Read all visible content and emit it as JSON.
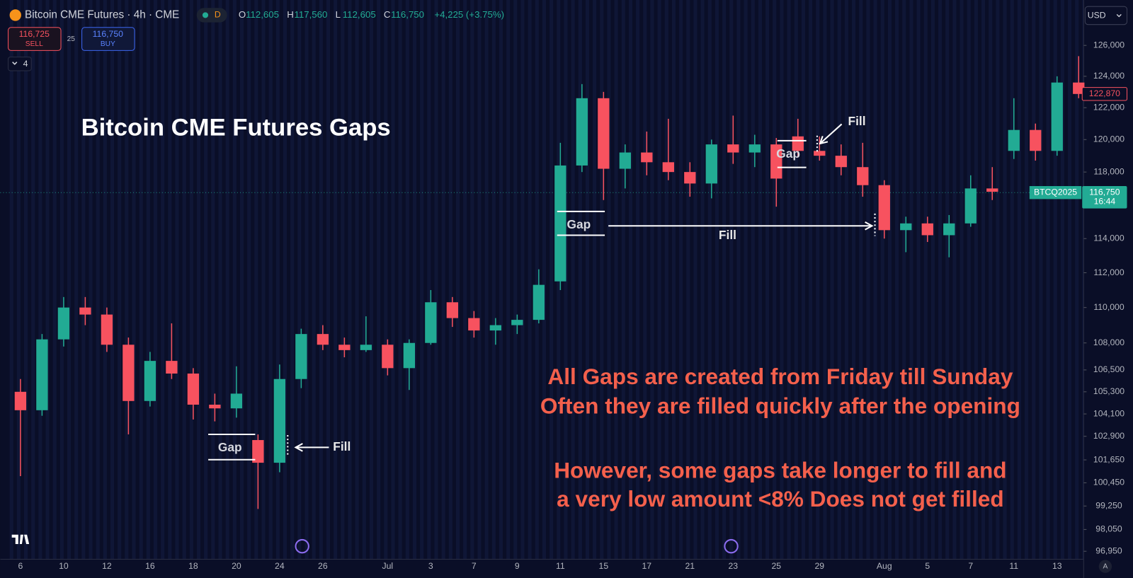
{
  "header": {
    "symbol": "Bitcoin CME Futures · 4h · CME",
    "badge": "D",
    "ohlc": [
      {
        "key": "O",
        "value": "112,605"
      },
      {
        "key": "H",
        "value": "117,560"
      },
      {
        "key": "L",
        "value": "112,605"
      },
      {
        "key": "C",
        "value": "116,750"
      }
    ],
    "change": "+4,225 (+3.75%)",
    "sell_price": "116,725",
    "sell": "SELL",
    "spread": "25",
    "buy_price": "116,750",
    "buy": "BUY",
    "layers": "4",
    "currency": "USD",
    "scale_mode": "A"
  },
  "chart_data": {
    "type": "candlestick",
    "title": "Bitcoin CME Futures Gaps",
    "categories": [
      "6",
      null,
      "10",
      null,
      "12",
      null,
      "16",
      null,
      "18",
      null,
      "20",
      null,
      "24",
      null,
      "26",
      null,
      null,
      "Jul",
      null,
      "3",
      null,
      "7",
      null,
      "9",
      null,
      "11",
      null,
      "15",
      null,
      "17",
      null,
      "21",
      null,
      "23",
      null,
      "25",
      null,
      "29",
      null,
      null,
      "Aug",
      null,
      "5",
      null,
      "7",
      null,
      "11",
      null,
      "13",
      null
    ],
    "open": [
      105300,
      104300,
      108200,
      110000,
      109600,
      107900,
      104800,
      107000,
      106300,
      104600,
      104400,
      102700,
      101500,
      106000,
      108500,
      107900,
      107600,
      107900,
      106600,
      108000,
      110300,
      109400,
      108700,
      109000,
      109300,
      111500,
      118400,
      122600,
      118200,
      119200,
      118600,
      118000,
      117300,
      119700,
      119200,
      119700,
      120200,
      119300,
      119000,
      118300,
      117200,
      114500,
      114900,
      114200,
      114900,
      117000,
      119300,
      120600,
      119300,
      123600
    ],
    "high": [
      106000,
      108500,
      110600,
      110600,
      110000,
      108300,
      107500,
      109100,
      106600,
      105200,
      106700,
      103000,
      106800,
      108800,
      109000,
      108300,
      109500,
      108200,
      108200,
      111000,
      110600,
      109800,
      109400,
      109600,
      112200,
      119800,
      123500,
      123000,
      119700,
      120500,
      121300,
      118600,
      120000,
      121500,
      120300,
      120100,
      121300,
      120200,
      119700,
      119800,
      117500,
      115300,
      115300,
      115400,
      117800,
      118300,
      122600,
      121000,
      124000,
      125300
    ],
    "low": [
      100800,
      104000,
      107800,
      109000,
      107500,
      103000,
      104500,
      106000,
      103800,
      103700,
      103900,
      99100,
      101000,
      105500,
      107600,
      107200,
      107500,
      106200,
      105400,
      107900,
      108900,
      108300,
      107900,
      108500,
      109100,
      111000,
      118000,
      116300,
      117000,
      117800,
      117500,
      116500,
      116400,
      118500,
      118300,
      115900,
      118900,
      118700,
      117800,
      116500,
      114000,
      113200,
      113800,
      112900,
      114700,
      116300,
      118800,
      118700,
      119000,
      122600
    ],
    "close": [
      104300,
      108200,
      110000,
      109600,
      107900,
      104800,
      107000,
      106300,
      104600,
      104400,
      105200,
      101500,
      106000,
      108500,
      107900,
      107600,
      107900,
      106600,
      108000,
      110300,
      109400,
      108700,
      109000,
      109300,
      111300,
      118400,
      122600,
      118200,
      119200,
      118600,
      118000,
      117300,
      119700,
      119200,
      119700,
      117600,
      119300,
      119000,
      118300,
      117200,
      114500,
      114900,
      114200,
      114900,
      117000,
      116800,
      120600,
      119300,
      123600,
      122870
    ],
    "up_color": "#22ab94",
    "down_color": "#f7525f",
    "log_scale": true,
    "ylim": [
      96550,
      129000
    ],
    "yticks": [
      {
        "value": 96950,
        "label": "96,950"
      },
      {
        "value": 98050,
        "label": "98,050"
      },
      {
        "value": 99250,
        "label": "99,250"
      },
      {
        "value": 100450,
        "label": "100,450"
      },
      {
        "value": 101650,
        "label": "101,650"
      },
      {
        "value": 102900,
        "label": "102,900"
      },
      {
        "value": 104100,
        "label": "104,100"
      },
      {
        "value": 105300,
        "label": "105,300"
      },
      {
        "value": 106500,
        "label": "106,500"
      },
      {
        "value": 108000,
        "label": "108,000"
      },
      {
        "value": 110000,
        "label": "110,000"
      },
      {
        "value": 112000,
        "label": "112,000"
      },
      {
        "value": 114000,
        "label": "114,000"
      },
      {
        "value": 116000,
        "label": "116,000"
      },
      {
        "value": 118000,
        "label": "118,000"
      },
      {
        "value": 120000,
        "label": "120,000"
      },
      {
        "value": 122000,
        "label": "122,000"
      },
      {
        "value": 124000,
        "label": "124,000"
      },
      {
        "value": 126000,
        "label": "126,000"
      }
    ],
    "last_price": {
      "value": 122870,
      "label": "122,870",
      "color": "#f7525f"
    },
    "contract_price": {
      "value": 116750,
      "label": "116,750",
      "symbol": "BTCQ2025",
      "countdown": "16:44",
      "color": "#22ab94"
    },
    "annotations": [
      "Gap",
      "Fill",
      "Gap",
      "Fill",
      "Gap",
      "Fill"
    ],
    "notes": [
      "All Gaps are created from Friday till Sunday",
      "Often they are filled quickly after the opening",
      "However, some gaps take longer to fill and",
      "a very low amount <8% Does not get filled"
    ],
    "note_color": "#f4604c"
  }
}
